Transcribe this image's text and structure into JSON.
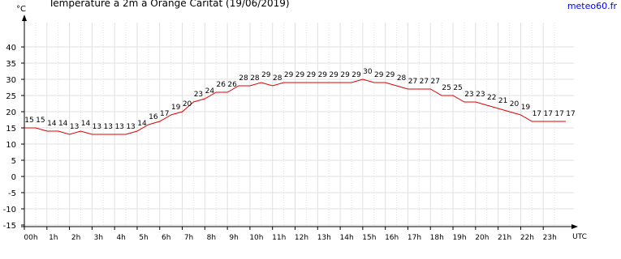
{
  "chart_data": {
    "type": "line",
    "title": "Température à 2m à Orange Caritat (19/06/2019)",
    "source": "meteo60.fr",
    "y_label": "°C",
    "x_label": "UTC",
    "x": [
      0,
      0.5,
      1,
      1.5,
      2,
      2.5,
      3,
      3.5,
      4,
      4.5,
      5,
      5.5,
      6,
      6.5,
      7,
      7.5,
      8,
      8.5,
      9,
      9.5,
      10,
      10.5,
      11,
      11.5,
      12,
      12.5,
      13,
      13.5,
      14,
      14.5,
      15,
      15.5,
      16,
      16.5,
      17,
      17.5,
      18,
      18.5,
      19,
      19.5,
      20,
      20.5,
      21,
      21.5,
      22,
      22.5,
      23,
      23.5,
      24
    ],
    "series": [
      {
        "name": "Température",
        "color": "#e00000",
        "values": [
          15,
          15,
          14,
          14,
          13,
          14,
          13,
          13,
          13,
          13,
          14,
          16,
          17,
          19,
          20,
          23,
          24,
          26,
          26,
          28,
          28,
          29,
          28,
          29,
          29,
          29,
          29,
          29,
          29,
          29,
          30,
          29,
          29,
          28,
          27,
          27,
          27,
          25,
          25,
          23,
          23,
          22,
          21,
          20,
          19,
          17,
          17,
          17,
          17
        ]
      }
    ],
    "xlim": [
      0,
      24
    ],
    "xticks": [
      {
        "value": 0,
        "label": "00h"
      },
      {
        "value": 1,
        "label": "1h"
      },
      {
        "value": 2,
        "label": "2h"
      },
      {
        "value": 3,
        "label": "3h"
      },
      {
        "value": 4,
        "label": "4h"
      },
      {
        "value": 5,
        "label": "5h"
      },
      {
        "value": 6,
        "label": "6h"
      },
      {
        "value": 7,
        "label": "7h"
      },
      {
        "value": 8,
        "label": "8h"
      },
      {
        "value": 9,
        "label": "9h"
      },
      {
        "value": 10,
        "label": "10h"
      },
      {
        "value": 11,
        "label": "11h"
      },
      {
        "value": 12,
        "label": "12h"
      },
      {
        "value": 13,
        "label": "13h"
      },
      {
        "value": 14,
        "label": "14h"
      },
      {
        "value": 15,
        "label": "15h"
      },
      {
        "value": 16,
        "label": "16h"
      },
      {
        "value": 17,
        "label": "17h"
      },
      {
        "value": 18,
        "label": "18h"
      },
      {
        "value": 19,
        "label": "19h"
      },
      {
        "value": 20,
        "label": "20h"
      },
      {
        "value": 21,
        "label": "21h"
      },
      {
        "value": 22,
        "label": "22h"
      },
      {
        "value": 23,
        "label": "23h"
      }
    ],
    "ylim": [
      -15,
      40
    ],
    "yticks": [
      -15,
      -10,
      -5,
      0,
      5,
      10,
      15,
      20,
      25,
      30,
      35,
      40
    ],
    "grid": true
  }
}
